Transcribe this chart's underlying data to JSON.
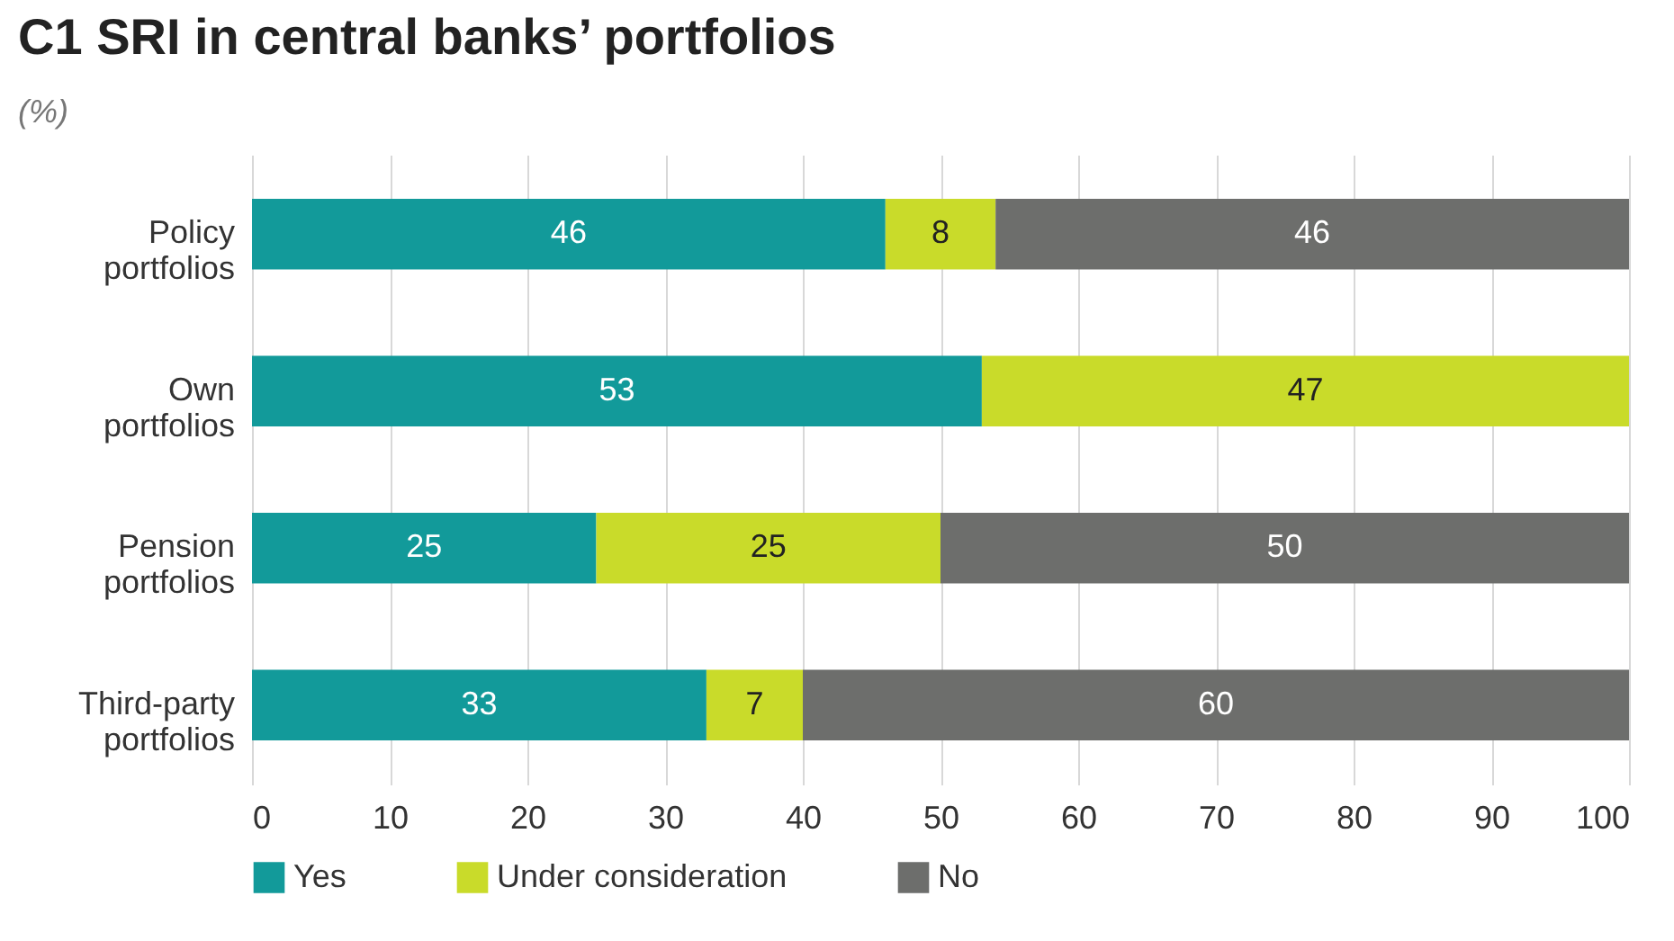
{
  "chart_data": {
    "type": "bar",
    "title": "C1  SRI in central banks’ portfolios",
    "subtitle": "(%)",
    "orientation": "horizontal",
    "stacked": true,
    "categories": [
      "Policy portfolios",
      "Own portfolios",
      "Pension portfolios",
      "Third-party portfolios"
    ],
    "series": [
      {
        "name": "Yes",
        "color": "#129a9a",
        "values": [
          46,
          53,
          25,
          33
        ]
      },
      {
        "name": "Under consideration",
        "color": "#c9db2a",
        "values": [
          8,
          47,
          25,
          7
        ]
      },
      {
        "name": "No",
        "color": "#6d6e6c",
        "values": [
          46,
          null,
          50,
          60
        ]
      }
    ],
    "xlim": [
      0,
      100
    ],
    "xticks": [
      0,
      10,
      20,
      30,
      40,
      50,
      60,
      70,
      80,
      90,
      100
    ],
    "grid": "x",
    "legend": "bottom",
    "data_labels": true
  }
}
